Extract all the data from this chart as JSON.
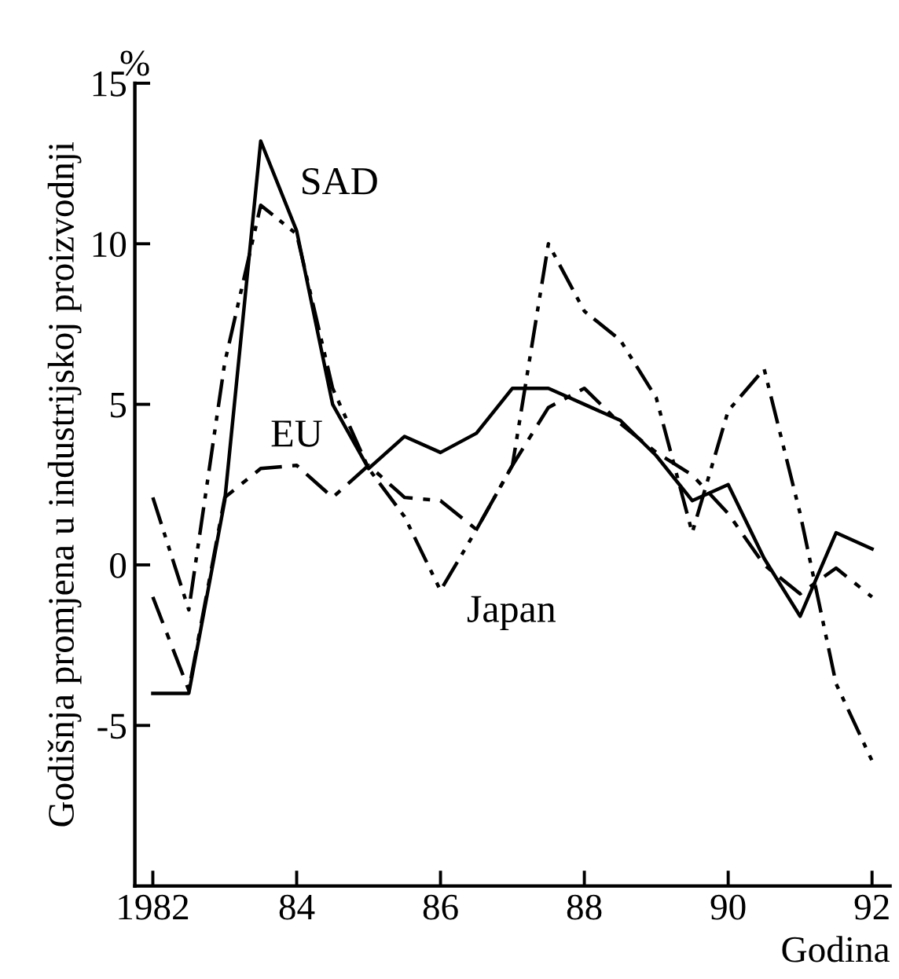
{
  "chart_data": {
    "type": "line",
    "xlabel": "Godina",
    "ylabel": "Godišnja promjena u industrijskoj proizvodnji",
    "annotations": [
      "%"
    ],
    "x": [
      1982,
      1982.5,
      1983,
      1983.5,
      1984,
      1984.5,
      1985,
      1985.5,
      1986,
      1986.5,
      1987,
      1987.5,
      1988,
      1988.5,
      1989,
      1989.5,
      1990,
      1990.5,
      1991,
      1991.5,
      1992
    ],
    "series": [
      {
        "name": "SAD",
        "color": "#000000",
        "line_style": "solid",
        "values": [
          -4.0,
          -4.0,
          2.0,
          13.2,
          10.4,
          5.0,
          3.0,
          4.0,
          3.5,
          4.1,
          5.5,
          5.5,
          5.0,
          4.5,
          3.4,
          2.0,
          2.5,
          0.2,
          -1.6,
          1.0,
          0.5
        ]
      },
      {
        "name": "EU",
        "color": "#000000",
        "line_style": "dashdot",
        "values": [
          -1.0,
          -3.9,
          2.1,
          3.0,
          3.1,
          2.1,
          3.1,
          2.1,
          2.0,
          1.1,
          3.1,
          4.9,
          5.5,
          4.4,
          3.5,
          2.8,
          1.6,
          0.0,
          -0.9,
          -0.1,
          -1.0
        ]
      },
      {
        "name": "Japan",
        "color": "#000000",
        "line_style": "dashdotdot",
        "values": [
          2.1,
          -1.4,
          6.3,
          11.2,
          10.3,
          5.5,
          3.0,
          1.5,
          -0.8,
          1.1,
          3.1,
          10.0,
          7.9,
          7.0,
          5.2,
          1.0,
          4.8,
          6.1,
          1.6,
          -3.7,
          -6.1
        ]
      }
    ],
    "xlim": [
      1981.75,
      1992.25
    ],
    "ylim": [
      -10,
      15
    ],
    "xticks": [
      {
        "value": 1982,
        "label": "1982"
      },
      {
        "value": 1984,
        "label": "84"
      },
      {
        "value": 1986,
        "label": "86"
      },
      {
        "value": 1988,
        "label": "88"
      },
      {
        "value": 1990,
        "label": "90"
      },
      {
        "value": 1992,
        "label": "92"
      }
    ],
    "yticks": [
      {
        "value": -5,
        "label": "-5"
      },
      0,
      5,
      10,
      15
    ],
    "grid": false,
    "legend": false,
    "marker": "none"
  }
}
